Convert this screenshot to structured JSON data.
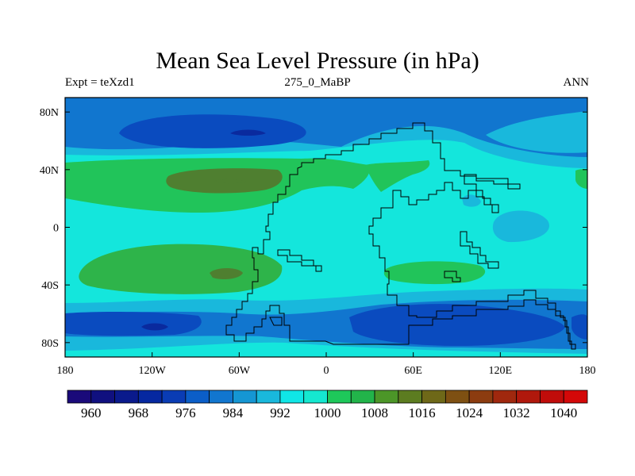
{
  "title": "Mean Sea Level Pressure (in hPa)",
  "subtitle_left": "Expt = teXzd1",
  "subtitle_center": "275_0_MaBP",
  "subtitle_right": "ANN",
  "map": {
    "projection": "cylindrical equidistant",
    "lon_ticks": [
      "180",
      "120W",
      "60W",
      "0",
      "60E",
      "120E",
      "180"
    ],
    "lat_ticks": [
      "80N",
      "40N",
      "0",
      "40S",
      "80S"
    ],
    "features": [
      "Pangaea supercontinent coastline outline",
      "filled pressure contours"
    ]
  },
  "colorbar": {
    "levels": [
      960,
      968,
      976,
      984,
      992,
      1000,
      1008,
      1016,
      1024,
      1032,
      1040
    ],
    "labels": [
      "960",
      "968",
      "976",
      "984",
      "992",
      "1000",
      "1008",
      "1016",
      "1024",
      "1032",
      "1040"
    ],
    "colors": [
      "#1a0a7a",
      "#10107f",
      "#0a1a8c",
      "#0628a0",
      "#0a3cb4",
      "#0b5ec8",
      "#1176cf",
      "#1596d3",
      "#19b8dc",
      "#10e6e6",
      "#15e8d0",
      "#1ec85a",
      "#22b44a",
      "#4c9628",
      "#5c7c20",
      "#6e6818",
      "#7e5012",
      "#8c3c10",
      "#a0280e",
      "#b0180c",
      "#c00c0a",
      "#d40808"
    ]
  },
  "palette": {
    "bg_field": "#14e6dc",
    "band_992": "#19b8dc",
    "band_984": "#1176cf",
    "band_976": "#0a4bbf",
    "band_968": "#0a2a9e",
    "green_1000": "#21c45a",
    "green_1008": "#2eb44a",
    "olive_1016": "#4f7f30"
  }
}
